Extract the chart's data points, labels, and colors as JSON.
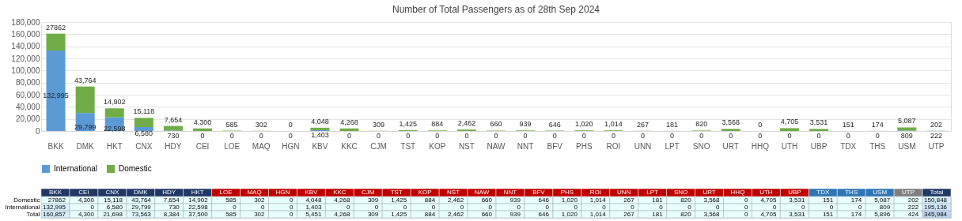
{
  "chart_data": [
    {
      "type": "bar",
      "title": "Number of Total Passengers as of 28th Sep 2024",
      "stacked": true,
      "legend": "bottom",
      "grid": "y",
      "categories": [
        "BKK",
        "DMK",
        "HKT",
        "CNX",
        "HDY",
        "CEI",
        "LOE",
        "MAQ",
        "HGN",
        "KBV",
        "KKC",
        "CJM",
        "TST",
        "KOP",
        "NST",
        "NAW",
        "NNT",
        "BFV",
        "PHS",
        "ROI",
        "UNN",
        "LPT",
        "SNO",
        "URT",
        "HHQ",
        "UTH",
        "UBP",
        "TDX",
        "THS",
        "USM",
        "UTP"
      ],
      "ylim": [
        0,
        180000
      ],
      "yticks": [
        0,
        {
          "value": 20000,
          "label": "20,000"
        },
        {
          "value": 40000,
          "label": "40,000"
        },
        {
          "value": 60000,
          "label": "60,000"
        },
        {
          "value": 80000,
          "label": "80,000"
        },
        {
          "value": 100000,
          "label": "100,000"
        },
        {
          "value": 120000,
          "label": "120,000"
        },
        {
          "value": 140000,
          "label": "140,000"
        },
        {
          "value": 160000,
          "label": "160,000"
        },
        {
          "value": 180000,
          "label": "180,000"
        }
      ],
      "series": [
        {
          "name": "International",
          "color": "#5b9bd5",
          "values": [
            132995,
            29799,
            22598,
            6580,
            730,
            0,
            0,
            0,
            0,
            1403,
            0,
            0,
            0,
            0,
            0,
            0,
            0,
            0,
            0,
            0,
            0,
            0,
            0,
            0,
            0,
            0,
            0,
            0,
            0,
            809,
            222
          ],
          "value_labels": [
            "132,995",
            "29,799",
            "22,598",
            "6,580",
            "730",
            "0",
            "0",
            "0",
            "0",
            "1,403",
            "0",
            "0",
            "0",
            "0",
            "0",
            "0",
            "0",
            "0",
            "0",
            "0",
            "0",
            "0",
            "0",
            "0",
            "0",
            "0",
            "0",
            "0",
            "0",
            "809",
            "222"
          ]
        },
        {
          "name": "Domestic",
          "color": "#70ad47",
          "values": [
            27862,
            43764,
            14902,
            15118,
            7654,
            4300,
            585,
            302,
            0,
            4048,
            4268,
            309,
            1425,
            884,
            2462,
            660,
            939,
            646,
            1020,
            1014,
            267,
            181,
            820,
            3568,
            0,
            4705,
            3531,
            151,
            174,
            5087,
            202
          ],
          "value_labels": [
            "27862",
            "43,764",
            "14,902",
            "15,118",
            "7,654",
            "4,300",
            "585",
            "302",
            "0",
            "4,048",
            "4,268",
            "309",
            "1,425",
            "884",
            "2,462",
            "660",
            "939",
            "646",
            "1,020",
            "1,014",
            "267",
            "181",
            "820",
            "3,568",
            "0",
            "4,705",
            "3,531",
            "151",
            "174",
            "5,087",
            "202"
          ]
        }
      ]
    },
    {
      "type": "heatmap",
      "categories": [
        "BKK",
        "CEI",
        "CNX",
        "DMK",
        "HDY",
        "HKT",
        "LOE",
        "MAQ",
        "HGN",
        "KBV",
        "KKC",
        "CJM",
        "TST",
        "KOP",
        "NST",
        "NAW",
        "NNT",
        "BFV",
        "PHS",
        "ROI",
        "UNN",
        "LPT",
        "SNO",
        "URT",
        "HHQ",
        "UTH",
        "UBP",
        "TDX",
        "THS",
        "USM",
        "UTP",
        "Total"
      ],
      "colors": [
        "#1f3864",
        "#1f3864",
        "#1f3864",
        "#1f3864",
        "#1f3864",
        "#1f3864",
        "#c00000",
        "#c00000",
        "#c00000",
        "#c00000",
        "#c00000",
        "#c00000",
        "#c00000",
        "#c00000",
        "#c00000",
        "#c00000",
        "#c00000",
        "#c00000",
        "#c00000",
        "#c00000",
        "#c00000",
        "#c00000",
        "#c00000",
        "#c00000",
        "#c00000",
        "#c00000",
        "#c00000",
        "#2e75b6",
        "#2e75b6",
        "#2e75b6",
        "#808080",
        "#1f3864"
      ],
      "y_categories": [
        "Domestic",
        "International",
        "Total"
      ],
      "cells": [
        [
          27862,
          4300,
          15118,
          43764,
          7654,
          14902,
          585,
          302,
          0,
          4048,
          4268,
          309,
          1425,
          884,
          2462,
          660,
          939,
          646,
          1020,
          1014,
          267,
          181,
          820,
          3568,
          0,
          4705,
          3531,
          151,
          174,
          5087,
          202,
          150848
        ],
        [
          132995,
          0,
          6580,
          29799,
          730,
          22598,
          0,
          0,
          0,
          1403,
          0,
          0,
          0,
          0,
          0,
          0,
          0,
          0,
          0,
          0,
          0,
          0,
          0,
          0,
          0,
          0,
          0,
          0,
          0,
          809,
          222,
          195136
        ],
        [
          160857,
          4300,
          21698,
          73563,
          8384,
          37500,
          585,
          302,
          0,
          5451,
          4268,
          309,
          1425,
          884,
          2462,
          660,
          939,
          646,
          1020,
          1014,
          267,
          181,
          820,
          3568,
          0,
          4705,
          3531,
          151,
          174,
          5896,
          424,
          345984
        ]
      ],
      "cell_labels": [
        [
          "27862",
          "4,300",
          "15,118",
          "43,764",
          "7,654",
          "14,902",
          "585",
          "302",
          "0",
          "4,048",
          "4,268",
          "309",
          "1,425",
          "884",
          "2,462",
          "660",
          "939",
          "646",
          "1,020",
          "1,014",
          "267",
          "181",
          "820",
          "3,568",
          "0",
          "4,705",
          "3,531",
          "151",
          "174",
          "5,087",
          "202",
          "150,848"
        ],
        [
          "132,995",
          "0",
          "6,580",
          "29,799",
          "730",
          "22,598",
          "0",
          "0",
          "0",
          "1,403",
          "0",
          "0",
          "0",
          "0",
          "0",
          "0",
          "0",
          "0",
          "0",
          "0",
          "0",
          "0",
          "0",
          "0",
          "0",
          "0",
          "0",
          "0",
          "0",
          "809",
          "222",
          "195,136"
        ],
        [
          "160,857",
          "4,300",
          "21,698",
          "73,563",
          "8,384",
          "37,500",
          "585",
          "302",
          "0",
          "5,451",
          "4,268",
          "309",
          "1,425",
          "884",
          "2,462",
          "660",
          "939",
          "646",
          "1,020",
          "1,014",
          "267",
          "181",
          "820",
          "3,568",
          "0",
          "4,705",
          "3,531",
          "151",
          "174",
          "5,896",
          "424",
          "345,984"
        ]
      ]
    }
  ]
}
